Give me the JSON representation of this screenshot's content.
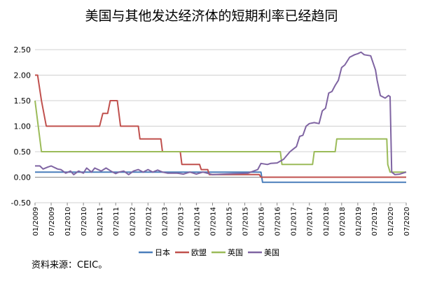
{
  "title": "美国与其他发达经济体的短期利率已经趋同",
  "source": "资料来源：CEIC。",
  "chart_data": {
    "type": "line",
    "title": "美国与其他发达经济体的短期利率已经趋同",
    "xlabel": "",
    "ylabel": "",
    "ylim": [
      -0.5,
      2.5
    ],
    "y_ticks": [
      "2.50",
      "2.00",
      "1.50",
      "1.00",
      "0.50",
      "0.00",
      "-0.50"
    ],
    "x_ticks": [
      "01/2009",
      "07/2009",
      "01/2010",
      "07/2010",
      "01/2011",
      "07/2011",
      "01/2012",
      "07/2012",
      "01/2013",
      "07/2013",
      "01/2014",
      "07/2014",
      "01/2015",
      "07/2015",
      "01/2016",
      "07/2016",
      "01/2017",
      "07/2017",
      "01/2018",
      "07/2018",
      "01/2019",
      "07/2019",
      "01/2020",
      "07/2020"
    ],
    "legend_position": "bottom",
    "grid": "horizontal",
    "series": [
      {
        "name": "日本",
        "color": "#4a7ebb",
        "points": [
          [
            0,
            0.1
          ],
          [
            7.0,
            0.1
          ],
          [
            7.05,
            -0.1
          ],
          [
            11.5,
            -0.1
          ]
        ]
      },
      {
        "name": "欧盟",
        "color": "#c0504d",
        "points": [
          [
            0,
            2.0
          ],
          [
            0.08,
            2.0
          ],
          [
            0.2,
            1.5
          ],
          [
            0.35,
            1.0
          ],
          [
            2.0,
            1.0
          ],
          [
            2.1,
            1.25
          ],
          [
            2.25,
            1.25
          ],
          [
            2.33,
            1.5
          ],
          [
            2.55,
            1.5
          ],
          [
            2.65,
            1.0
          ],
          [
            3.2,
            1.0
          ],
          [
            3.25,
            0.75
          ],
          [
            3.9,
            0.75
          ],
          [
            3.95,
            0.5
          ],
          [
            4.5,
            0.5
          ],
          [
            4.55,
            0.25
          ],
          [
            5.1,
            0.25
          ],
          [
            5.15,
            0.15
          ],
          [
            5.35,
            0.15
          ],
          [
            5.4,
            0.05
          ],
          [
            6.95,
            0.05
          ],
          [
            7.0,
            0.0
          ],
          [
            11.5,
            0.0
          ]
        ]
      },
      {
        "name": "英国",
        "color": "#9bbb59",
        "points": [
          [
            0,
            1.5
          ],
          [
            0.1,
            1.0
          ],
          [
            0.2,
            0.5
          ],
          [
            7.6,
            0.5
          ],
          [
            7.65,
            0.25
          ],
          [
            8.6,
            0.25
          ],
          [
            8.65,
            0.5
          ],
          [
            9.3,
            0.5
          ],
          [
            9.35,
            0.75
          ],
          [
            10.9,
            0.75
          ],
          [
            10.93,
            0.25
          ],
          [
            11.0,
            0.1
          ],
          [
            11.5,
            0.1
          ]
        ]
      },
      {
        "name": "美国",
        "color": "#7f64a2",
        "points": [
          [
            0,
            0.22
          ],
          [
            0.15,
            0.22
          ],
          [
            0.25,
            0.16
          ],
          [
            0.4,
            0.2
          ],
          [
            0.5,
            0.22
          ],
          [
            0.7,
            0.16
          ],
          [
            0.8,
            0.15
          ],
          [
            0.95,
            0.08
          ],
          [
            1.1,
            0.12
          ],
          [
            1.2,
            0.05
          ],
          [
            1.35,
            0.12
          ],
          [
            1.5,
            0.08
          ],
          [
            1.6,
            0.18
          ],
          [
            1.75,
            0.1
          ],
          [
            1.85,
            0.18
          ],
          [
            2.05,
            0.12
          ],
          [
            2.2,
            0.18
          ],
          [
            2.35,
            0.12
          ],
          [
            2.5,
            0.07
          ],
          [
            2.6,
            0.1
          ],
          [
            2.75,
            0.12
          ],
          [
            2.9,
            0.05
          ],
          [
            3.05,
            0.12
          ],
          [
            3.2,
            0.15
          ],
          [
            3.35,
            0.1
          ],
          [
            3.5,
            0.15
          ],
          [
            3.65,
            0.1
          ],
          [
            3.8,
            0.14
          ],
          [
            3.95,
            0.1
          ],
          [
            4.1,
            0.08
          ],
          [
            4.4,
            0.08
          ],
          [
            4.6,
            0.06
          ],
          [
            4.8,
            0.1
          ],
          [
            5.0,
            0.06
          ],
          [
            5.2,
            0.1
          ],
          [
            5.5,
            0.05
          ],
          [
            5.8,
            0.06
          ],
          [
            6.2,
            0.07
          ],
          [
            6.6,
            0.08
          ],
          [
            6.9,
            0.15
          ],
          [
            7.0,
            0.27
          ],
          [
            7.2,
            0.25
          ],
          [
            7.3,
            0.27
          ],
          [
            7.5,
            0.28
          ],
          [
            7.7,
            0.35
          ],
          [
            7.9,
            0.5
          ],
          [
            8.0,
            0.55
          ],
          [
            8.1,
            0.6
          ],
          [
            8.2,
            0.8
          ],
          [
            8.3,
            0.82
          ],
          [
            8.4,
            1.0
          ],
          [
            8.5,
            1.05
          ],
          [
            8.65,
            1.07
          ],
          [
            8.8,
            1.05
          ],
          [
            8.9,
            1.3
          ],
          [
            9.0,
            1.35
          ],
          [
            9.1,
            1.65
          ],
          [
            9.2,
            1.68
          ],
          [
            9.3,
            1.8
          ],
          [
            9.4,
            1.9
          ],
          [
            9.5,
            2.15
          ],
          [
            9.6,
            2.2
          ],
          [
            9.75,
            2.35
          ],
          [
            9.9,
            2.4
          ],
          [
            10.0,
            2.42
          ],
          [
            10.1,
            2.45
          ],
          [
            10.2,
            2.4
          ],
          [
            10.4,
            2.38
          ],
          [
            10.55,
            2.1
          ],
          [
            10.6,
            1.9
          ],
          [
            10.7,
            1.6
          ],
          [
            10.85,
            1.55
          ],
          [
            10.95,
            1.6
          ],
          [
            11.0,
            1.58
          ],
          [
            11.05,
            0.1
          ],
          [
            11.15,
            0.05
          ],
          [
            11.3,
            0.06
          ],
          [
            11.5,
            0.1
          ]
        ]
      }
    ]
  }
}
